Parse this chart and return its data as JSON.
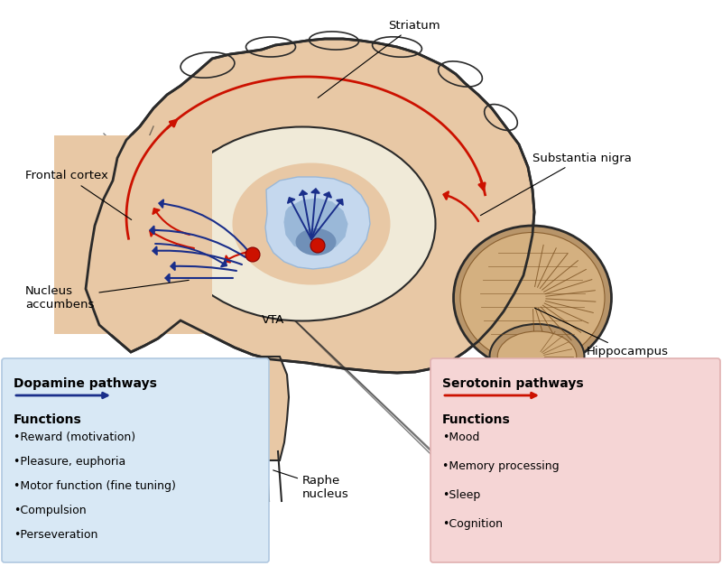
{
  "background_color": "#ffffff",
  "brain_skin_color": "#e8c8a5",
  "brain_outline_color": "#2a2a2a",
  "inner_cream": "#f5e8d5",
  "corpus_white": "#f0ead8",
  "limbic_blue_light": "#c5d8ee",
  "limbic_blue_mid": "#9ab8d8",
  "limbic_blue_dark": "#7090b8",
  "cerebellum_color": "#b8956a",
  "cerebellum_light": "#d4b080",
  "dopamine_color": "#1a2e8a",
  "serotonin_color": "#cc1100",
  "dot_color_red": "#cc1100",
  "dot_color_blue": "#3050a0",
  "labels": {
    "frontal_cortex": "Frontal cortex",
    "striatum": "Striatum",
    "substantia_nigra": "Substantia nigra",
    "nucleus_accumbens": "Nucleus\naccumbens",
    "vta": "VTA",
    "hippocampus": "Hippocampus",
    "raphe_nucleus": "Raphe\nnucleus"
  },
  "dopamine_box": {
    "bg_color": "#d8e8f5",
    "border_color": "#b0c8e0",
    "title": "Dopamine pathways",
    "arrow_color": "#1a2e8a",
    "functions_label": "Functions",
    "functions": [
      "•Reward (motivation)",
      "•Pleasure, euphoria",
      "•Motor function (fine tuning)",
      "•Compulsion",
      "•Perseveration"
    ]
  },
  "serotonin_box": {
    "bg_color": "#f5d5d5",
    "border_color": "#e0b0b0",
    "title": "Serotonin pathways",
    "arrow_color": "#cc1100",
    "functions_label": "Functions",
    "functions": [
      "•Mood",
      "•Memory processing",
      "•Sleep",
      "•Cognition"
    ]
  }
}
